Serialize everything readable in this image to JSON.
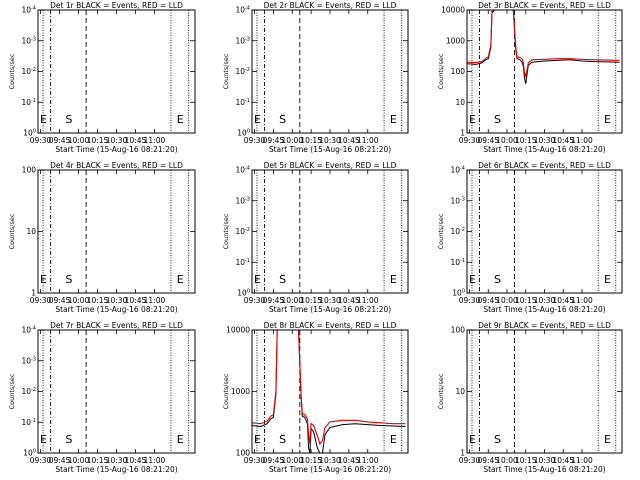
{
  "panels": [
    {
      "title": "Det 1r BLACK = Events, RED = LLD",
      "xlabel": "Start Time (15-Aug-16 08:21:20)",
      "ylabel": "Counts/sec",
      "xticks": [
        "09:30",
        "09:45",
        "10:00",
        "10:15",
        "10:30",
        "10:45",
        "11:00"
      ],
      "yscale": "log-tiny",
      "yticks": [
        {
          "m": "10",
          "e": "0"
        },
        {
          "m": "10",
          "e": "-1"
        },
        {
          "m": "10",
          "e": "-2"
        },
        {
          "m": "10",
          "e": "-3"
        },
        {
          "m": "10",
          "e": "-4"
        }
      ],
      "marker_labels": [
        {
          "text": "E",
          "x_min": -2
        },
        {
          "text": "S",
          "x_min": 18
        },
        {
          "text": "E",
          "x_min": 106
        }
      ]
    },
    {
      "title": "Det 2r BLACK = Events, RED = LLD",
      "xlabel": "Start Time (15-Aug-16 08:21:20)",
      "ylabel": "Counts/sec",
      "xticks": [
        "09:30",
        "09:45",
        "10:00",
        "10:15",
        "10:30",
        "10:45",
        "11:00"
      ],
      "yscale": "log-tiny",
      "yticks": [
        {
          "m": "10",
          "e": "0"
        },
        {
          "m": "10",
          "e": "-1"
        },
        {
          "m": "10",
          "e": "-2"
        },
        {
          "m": "10",
          "e": "-3"
        },
        {
          "m": "10",
          "e": "-4"
        }
      ],
      "marker_labels": [
        {
          "text": "E",
          "x_min": -2
        },
        {
          "text": "S",
          "x_min": 18
        },
        {
          "text": "E",
          "x_min": 106
        }
      ]
    },
    {
      "title": "Det 3r BLACK = Events, RED = LLD",
      "xlabel": "Start Time (15-Aug-16 08:21:20)",
      "ylabel": "Counts/sec",
      "xticks": [
        "09:30",
        "09:45",
        "10:00",
        "10:15",
        "10:30",
        "10:45",
        "11:00"
      ],
      "yscale": "log-big",
      "yticks": [
        {
          "m": "1",
          "e": ""
        },
        {
          "m": "10",
          "e": ""
        },
        {
          "m": "100",
          "e": ""
        },
        {
          "m": "1000",
          "e": ""
        },
        {
          "m": "10000",
          "e": ""
        }
      ],
      "marker_labels": [
        {
          "text": "E",
          "x_min": -2
        },
        {
          "text": "S",
          "x_min": 18
        },
        {
          "text": "E",
          "x_min": 106
        }
      ],
      "series": [
        {
          "color": "#000000",
          "points": [
            [
              -2,
              180
            ],
            [
              5,
              170
            ],
            [
              10,
              190
            ],
            [
              13,
              240
            ],
            [
              15,
              260
            ],
            [
              17,
              600
            ],
            [
              18,
              8000
            ],
            [
              20,
              30000
            ],
            [
              25,
              30000
            ],
            [
              30,
              30000
            ],
            [
              35,
              30000
            ],
            [
              37,
              500
            ],
            [
              38,
              260
            ],
            [
              40,
              250
            ],
            [
              42,
              200
            ],
            [
              43,
              150
            ],
            [
              44,
              60
            ],
            [
              45,
              40
            ],
            [
              46,
              80
            ],
            [
              47,
              160
            ],
            [
              50,
              200
            ],
            [
              60,
              220
            ],
            [
              70,
              230
            ],
            [
              80,
              240
            ],
            [
              90,
              220
            ],
            [
              100,
              210
            ],
            [
              110,
              205
            ],
            [
              120,
              200
            ]
          ]
        },
        {
          "color": "#e00000",
          "points": [
            [
              -2,
              200
            ],
            [
              5,
              195
            ],
            [
              10,
              210
            ],
            [
              13,
              270
            ],
            [
              15,
              300
            ],
            [
              17,
              700
            ],
            [
              18,
              9000
            ],
            [
              20,
              30000
            ],
            [
              25,
              30000
            ],
            [
              30,
              30000
            ],
            [
              35,
              30000
            ],
            [
              37,
              600
            ],
            [
              38,
              300
            ],
            [
              40,
              290
            ],
            [
              42,
              260
            ],
            [
              43,
              200
            ],
            [
              44,
              90
            ],
            [
              45,
              70
            ],
            [
              46,
              110
            ],
            [
              47,
              190
            ],
            [
              50,
              240
            ],
            [
              60,
              250
            ],
            [
              70,
              260
            ],
            [
              80,
              260
            ],
            [
              90,
              250
            ],
            [
              100,
              240
            ],
            [
              110,
              235
            ],
            [
              120,
              230
            ]
          ]
        }
      ]
    },
    {
      "title": "Det 4r BLACK = Events, RED = LLD",
      "xlabel": "Start Time (15-Aug-16 08:21:20)",
      "ylabel": "Counts/sec",
      "xticks": [
        "09:30",
        "09:45",
        "10:00",
        "10:15",
        "10:30",
        "10:45",
        "11:00"
      ],
      "yscale": "log-big",
      "yticks": [
        {
          "m": "1",
          "e": ""
        },
        {
          "m": "10",
          "e": ""
        },
        {
          "m": "100",
          "e": ""
        }
      ],
      "marker_labels": [
        {
          "text": "E",
          "x_min": -2
        },
        {
          "text": "S",
          "x_min": 18
        },
        {
          "text": "E",
          "x_min": 106
        }
      ]
    },
    {
      "title": "Det 5r BLACK = Events, RED = LLD",
      "xlabel": "Start Time (15-Aug-16 08:21:20)",
      "ylabel": "Counts/sec",
      "xticks": [
        "09:30",
        "09:45",
        "10:00",
        "10:15",
        "10:30",
        "10:45",
        "11:00"
      ],
      "yscale": "log-tiny",
      "yticks": [
        {
          "m": "10",
          "e": "0"
        },
        {
          "m": "10",
          "e": "-1"
        },
        {
          "m": "10",
          "e": "-2"
        },
        {
          "m": "10",
          "e": "-3"
        },
        {
          "m": "10",
          "e": "-4"
        }
      ],
      "marker_labels": [
        {
          "text": "E",
          "x_min": -2
        },
        {
          "text": "S",
          "x_min": 18
        },
        {
          "text": "E",
          "x_min": 106
        }
      ]
    },
    {
      "title": "Det 6r BLACK = Events, RED = LLD",
      "xlabel": "Start Time (15-Aug-16 08:21:20)",
      "ylabel": "Counts/sec",
      "xticks": [
        "09:30",
        "09:45",
        "10:00",
        "10:15",
        "10:30",
        "10:45",
        "11:00"
      ],
      "yscale": "log-tiny",
      "yticks": [
        {
          "m": "10",
          "e": "0"
        },
        {
          "m": "10",
          "e": "-1"
        },
        {
          "m": "10",
          "e": "-2"
        },
        {
          "m": "10",
          "e": "-3"
        },
        {
          "m": "10",
          "e": "-4"
        }
      ],
      "marker_labels": [
        {
          "text": "E",
          "x_min": -2
        },
        {
          "text": "S",
          "x_min": 18
        },
        {
          "text": "E",
          "x_min": 106
        }
      ]
    },
    {
      "title": "Det 7r BLACK = Events, RED = LLD",
      "xlabel": "Start Time (15-Aug-16 08:21:20)",
      "ylabel": "Counts/sec",
      "xticks": [
        "09:30",
        "09:45",
        "10:00",
        "10:15",
        "10:30",
        "10:45",
        "11:00"
      ],
      "yscale": "log-tiny",
      "yticks": [
        {
          "m": "10",
          "e": "0"
        },
        {
          "m": "10",
          "e": "-1"
        },
        {
          "m": "10",
          "e": "-2"
        },
        {
          "m": "10",
          "e": "-3"
        },
        {
          "m": "10",
          "e": "-4"
        }
      ],
      "marker_labels": [
        {
          "text": "E",
          "x_min": -2
        },
        {
          "text": "S",
          "x_min": 18
        },
        {
          "text": "E",
          "x_min": 106
        }
      ]
    },
    {
      "title": "Det 8r BLACK = Events, RED = LLD",
      "xlabel": "Start Time (15-Aug-16 08:21:20)",
      "ylabel": "Counts/sec",
      "xticks": [
        "09:30",
        "09:45",
        "10:00",
        "10:15",
        "10:30",
        "10:45",
        "11:00"
      ],
      "yscale": "log-big",
      "yticks": [
        {
          "m": "100",
          "e": ""
        },
        {
          "m": "1000",
          "e": ""
        },
        {
          "m": "10000",
          "e": ""
        }
      ],
      "marker_labels": [
        {
          "text": "E",
          "x_min": -2
        },
        {
          "text": "S",
          "x_min": 18
        },
        {
          "text": "E",
          "x_min": 106
        }
      ],
      "series": [
        {
          "color": "#000000",
          "points": [
            [
              -2,
              280
            ],
            [
              5,
              270
            ],
            [
              10,
              300
            ],
            [
              13,
              360
            ],
            [
              15,
              380
            ],
            [
              17,
              900
            ],
            [
              18,
              10000
            ],
            [
              20,
              30000
            ],
            [
              25,
              30000
            ],
            [
              30,
              30000
            ],
            [
              35,
              30000
            ],
            [
              37,
              800
            ],
            [
              38,
              400
            ],
            [
              40,
              380
            ],
            [
              42,
              300
            ],
            [
              43,
              120
            ],
            [
              44,
              60
            ],
            [
              45,
              250
            ],
            [
              47,
              220
            ],
            [
              50,
              120
            ],
            [
              52,
              70
            ],
            [
              54,
              90
            ],
            [
              56,
              200
            ],
            [
              60,
              260
            ],
            [
              70,
              290
            ],
            [
              80,
              300
            ],
            [
              90,
              290
            ],
            [
              100,
              280
            ],
            [
              110,
              275
            ],
            [
              120,
              270
            ]
          ]
        },
        {
          "color": "#e00000",
          "points": [
            [
              -2,
              310
            ],
            [
              5,
              300
            ],
            [
              10,
              330
            ],
            [
              13,
              400
            ],
            [
              15,
              420
            ],
            [
              17,
              1000
            ],
            [
              18,
              11000
            ],
            [
              20,
              30000
            ],
            [
              25,
              30000
            ],
            [
              30,
              30000
            ],
            [
              35,
              30000
            ],
            [
              37,
              900
            ],
            [
              38,
              440
            ],
            [
              40,
              420
            ],
            [
              42,
              360
            ],
            [
              43,
              200
            ],
            [
              44,
              140
            ],
            [
              45,
              300
            ],
            [
              47,
              280
            ],
            [
              50,
              190
            ],
            [
              52,
              140
            ],
            [
              54,
              160
            ],
            [
              56,
              260
            ],
            [
              60,
              320
            ],
            [
              70,
              340
            ],
            [
              80,
              340
            ],
            [
              90,
              320
            ],
            [
              100,
              310
            ],
            [
              110,
              300
            ],
            [
              120,
              300
            ]
          ]
        }
      ]
    },
    {
      "title": "Det 9r BLACK = Events, RED = LLD",
      "xlabel": "Start Time (15-Aug-16 08:21:20)",
      "ylabel": "Counts/sec",
      "xticks": [
        "09:30",
        "09:45",
        "10:00",
        "10:15",
        "10:30",
        "10:45",
        "11:00"
      ],
      "yscale": "log-big",
      "yticks": [
        {
          "m": "1",
          "e": ""
        },
        {
          "m": "10",
          "e": ""
        },
        {
          "m": "100",
          "e": ""
        }
      ],
      "marker_labels": [
        {
          "text": "E",
          "x_min": -2
        },
        {
          "text": "S",
          "x_min": 18
        },
        {
          "text": "E",
          "x_min": 106
        }
      ]
    }
  ],
  "chart_data": [
    {
      "type": "line",
      "title": "Det 1r BLACK = Events, RED = LLD",
      "xlabel": "Start Time (15-Aug-16 08:21:20)",
      "ylabel": "Counts/sec",
      "x_ticks": [
        "09:30",
        "09:45",
        "10:00",
        "10:15",
        "10:30",
        "10:45",
        "11:00"
      ],
      "ylim": [
        1,
        0.0001
      ],
      "yscale": "log",
      "grid": false,
      "series": []
    },
    {
      "type": "line",
      "title": "Det 2r BLACK = Events, RED = LLD",
      "xlabel": "Start Time (15-Aug-16 08:21:20)",
      "ylabel": "Counts/sec",
      "x_ticks": [
        "09:30",
        "09:45",
        "10:00",
        "10:15",
        "10:30",
        "10:45",
        "11:00"
      ],
      "ylim": [
        1,
        0.0001
      ],
      "yscale": "log",
      "grid": false,
      "series": []
    },
    {
      "type": "line",
      "title": "Det 3r BLACK = Events, RED = LLD",
      "xlabel": "Start Time (15-Aug-16 08:21:20)",
      "ylabel": "Counts/sec",
      "x_ticks": [
        "09:30",
        "09:45",
        "10:00",
        "10:15",
        "10:30",
        "10:45",
        "11:00"
      ],
      "ylim": [
        1,
        10000
      ],
      "yscale": "log",
      "grid": false,
      "series": [
        {
          "color": "black"
        },
        {
          "color": "red"
        }
      ]
    },
    {
      "type": "line",
      "title": "Det 4r BLACK = Events, RED = LLD",
      "xlabel": "Start Time (15-Aug-16 08:21:20)",
      "ylabel": "Counts/sec",
      "x_ticks": [
        "09:30",
        "09:45",
        "10:00",
        "10:15",
        "10:30",
        "10:45",
        "11:00"
      ],
      "ylim": [
        1,
        100
      ],
      "yscale": "log",
      "grid": false,
      "series": []
    },
    {
      "type": "line",
      "title": "Det 5r BLACK = Events, RED = LLD",
      "xlabel": "Start Time (15-Aug-16 08:21:20)",
      "ylabel": "Counts/sec",
      "x_ticks": [
        "09:30",
        "09:45",
        "10:00",
        "10:15",
        "10:30",
        "10:45",
        "11:00"
      ],
      "ylim": [
        1,
        0.0001
      ],
      "yscale": "log",
      "grid": false,
      "series": []
    },
    {
      "type": "line",
      "title": "Det 6r BLACK = Events, RED = LLD",
      "xlabel": "Start Time (15-Aug-16 08:21:20)",
      "ylabel": "Counts/sec",
      "x_ticks": [
        "09:30",
        "09:45",
        "10:00",
        "10:15",
        "10:30",
        "10:45",
        "11:00"
      ],
      "ylim": [
        1,
        0.0001
      ],
      "yscale": "log",
      "grid": false,
      "series": []
    },
    {
      "type": "line",
      "title": "Det 7r BLACK = Events, RED = LLD",
      "xlabel": "Start Time (15-Aug-16 08:21:20)",
      "ylabel": "Counts/sec",
      "x_ticks": [
        "09:30",
        "09:45",
        "10:00",
        "10:15",
        "10:30",
        "10:45",
        "11:00"
      ],
      "ylim": [
        1,
        0.0001
      ],
      "yscale": "log",
      "grid": false,
      "series": []
    },
    {
      "type": "line",
      "title": "Det 8r BLACK = Events, RED = LLD",
      "xlabel": "Start Time (15-Aug-16 08:21:20)",
      "ylabel": "Counts/sec",
      "x_ticks": [
        "09:30",
        "09:45",
        "10:00",
        "10:15",
        "10:30",
        "10:45",
        "11:00"
      ],
      "ylim": [
        100,
        10000
      ],
      "yscale": "log",
      "grid": false,
      "series": [
        {
          "color": "black"
        },
        {
          "color": "red"
        }
      ]
    },
    {
      "type": "line",
      "title": "Det 9r BLACK = Events, RED = LLD",
      "xlabel": "Start Time (15-Aug-16 08:21:20)",
      "ylabel": "Counts/sec",
      "x_ticks": [
        "09:30",
        "09:45",
        "10:00",
        "10:15",
        "10:30",
        "10:45",
        "11:00"
      ],
      "ylim": [
        1,
        100
      ],
      "yscale": "log",
      "grid": false,
      "series": []
    }
  ]
}
